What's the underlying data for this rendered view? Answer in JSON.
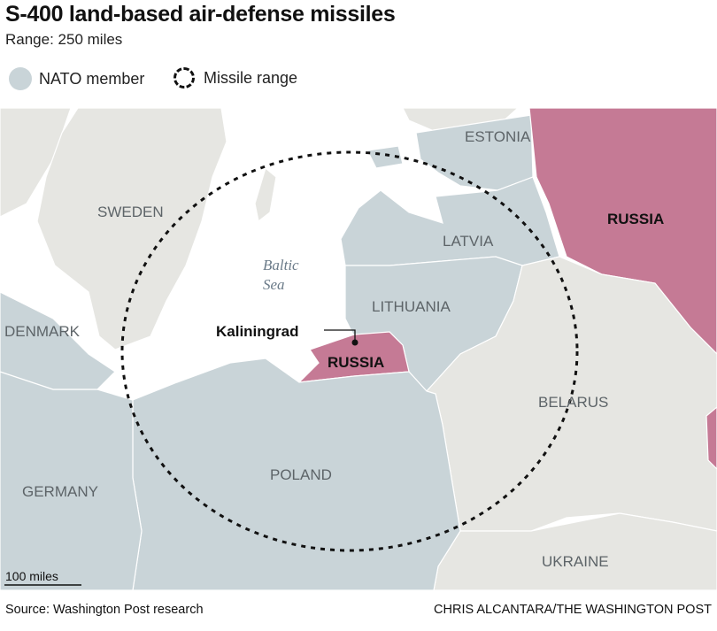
{
  "title": "S-400 land-based air-defense missiles",
  "subtitle": "Range: 250 miles",
  "legend": [
    {
      "label": "NATO member",
      "icon": "filled-circle",
      "color": "#c9d4d8"
    },
    {
      "label": "Missile range",
      "icon": "dashed-circle",
      "color": "#111111"
    }
  ],
  "colors": {
    "nato": "#c9d4d8",
    "other_land": "#e6e6e2",
    "russia": "#c57a95",
    "sea": "#ffffff"
  },
  "labels": {
    "estonia": "ESTONIA",
    "sweden": "SWEDEN",
    "latvia": "LATVIA",
    "russia_main": "RUSSIA",
    "sea": [
      "Baltic",
      "Sea"
    ],
    "lithuania": "LITHUANIA",
    "denmark": "DENMARK",
    "kaliningrad": "Kaliningrad",
    "russia_kal": "RUSSIA",
    "belarus": "BELARUS",
    "poland": "POLAND",
    "germany": "GERMANY",
    "ukraine": "UKRAINE"
  },
  "scale": "100 miles",
  "source": "Source: Washington Post research",
  "credit": "CHRIS ALCANTARA/THE WASHINGTON POST"
}
